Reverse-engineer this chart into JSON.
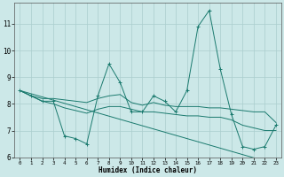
{
  "x": [
    0,
    1,
    2,
    3,
    4,
    5,
    6,
    7,
    8,
    9,
    10,
    11,
    12,
    13,
    14,
    15,
    16,
    17,
    18,
    19,
    20,
    21,
    22,
    23
  ],
  "y_main": [
    8.5,
    8.3,
    8.1,
    8.1,
    6.8,
    6.7,
    6.5,
    8.3,
    9.5,
    8.8,
    7.7,
    7.7,
    8.3,
    8.1,
    7.7,
    8.5,
    10.9,
    11.5,
    9.3,
    7.6,
    6.4,
    6.3,
    6.4,
    7.2
  ],
  "y_upper": [
    8.5,
    8.3,
    8.2,
    8.2,
    8.15,
    8.1,
    8.05,
    8.2,
    8.3,
    8.35,
    8.05,
    7.95,
    8.05,
    7.95,
    7.9,
    7.9,
    7.9,
    7.85,
    7.85,
    7.8,
    7.75,
    7.7,
    7.7,
    7.3
  ],
  "y_lower": [
    8.5,
    8.3,
    8.1,
    8.0,
    7.85,
    7.75,
    7.65,
    7.8,
    7.9,
    7.9,
    7.8,
    7.7,
    7.7,
    7.65,
    7.6,
    7.55,
    7.55,
    7.5,
    7.5,
    7.4,
    7.2,
    7.1,
    7.0,
    7.0
  ],
  "y_trend": [
    8.5,
    8.38,
    8.26,
    8.14,
    8.02,
    7.9,
    7.78,
    7.66,
    7.54,
    7.42,
    7.3,
    7.18,
    7.06,
    6.94,
    6.82,
    6.7,
    6.58,
    6.46,
    6.34,
    6.22,
    6.1,
    5.98,
    5.86,
    5.74
  ],
  "color": "#1a7a6e",
  "bg_color": "#cce8e8",
  "grid_color": "#aacece",
  "xlabel": "Humidex (Indice chaleur)",
  "ylim": [
    6,
    11.8
  ],
  "xlim": [
    -0.5,
    23.5
  ],
  "yticks": [
    6,
    7,
    8,
    9,
    10,
    11
  ],
  "xticks": [
    0,
    1,
    2,
    3,
    4,
    5,
    6,
    7,
    8,
    9,
    10,
    11,
    12,
    13,
    14,
    15,
    16,
    17,
    18,
    19,
    20,
    21,
    22,
    23
  ]
}
